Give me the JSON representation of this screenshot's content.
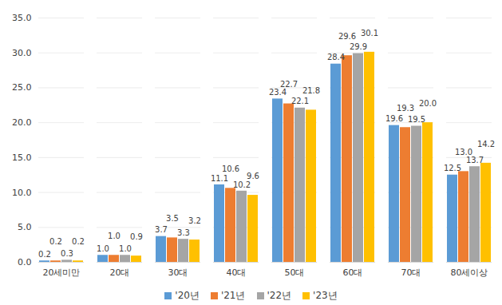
{
  "chart_data": {
    "type": "bar",
    "categories": [
      "20세미만",
      "20대",
      "30대",
      "40대",
      "50대",
      "60대",
      "70대",
      "80세이상"
    ],
    "series": [
      {
        "name": "'20년",
        "color": "#5B9BD5",
        "values": [
          0.2,
          1.0,
          3.7,
          11.1,
          23.4,
          28.4,
          19.6,
          12.5
        ],
        "value_labels": [
          "0.2",
          "1.0",
          "3.7",
          "11.1",
          "23.4",
          "28.4",
          "19.6",
          "12.5"
        ]
      },
      {
        "name": "'21년",
        "color": "#ED7D31",
        "values": [
          0.2,
          1.0,
          3.5,
          10.6,
          22.7,
          29.6,
          19.3,
          13.0
        ],
        "value_labels": [
          "0.2",
          "1.0",
          "3.5",
          "10.6",
          "22.7",
          "29.6",
          "19.3",
          "13.0"
        ]
      },
      {
        "name": "'22년",
        "color": "#A5A5A5",
        "values": [
          0.3,
          1.0,
          3.3,
          10.2,
          22.1,
          29.9,
          19.5,
          13.7
        ],
        "value_labels": [
          "0.3",
          "1.0",
          "3.3",
          "10.2",
          "22.1",
          "29.9",
          "19.5",
          "13.7"
        ]
      },
      {
        "name": "'23년",
        "color": "#FFC000",
        "values": [
          0.2,
          0.9,
          3.2,
          9.6,
          21.8,
          30.1,
          20.0,
          14.2
        ],
        "value_labels": [
          "0.2",
          "0.9",
          "3.2",
          "9.6",
          "21.8",
          "30.1",
          "20.0",
          "14.2"
        ]
      }
    ],
    "ylim": [
      0,
      35
    ],
    "yticks": [
      {
        "value": 0,
        "label": "0.0"
      },
      {
        "value": 5,
        "label": "5.0"
      },
      {
        "value": 10,
        "label": "10.0"
      },
      {
        "value": 15,
        "label": "15.0"
      },
      {
        "value": 20,
        "label": "20.0"
      },
      {
        "value": 25,
        "label": "25.0"
      },
      {
        "value": 30,
        "label": "30.0"
      },
      {
        "value": 35,
        "label": "35.0"
      }
    ],
    "grid": true,
    "legend": "bottom",
    "data_labels": true
  }
}
